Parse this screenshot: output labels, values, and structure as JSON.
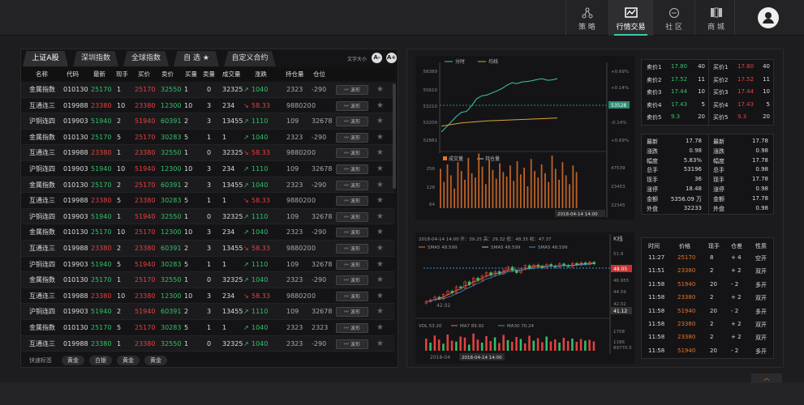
{
  "nav": [
    {
      "label": "策 略",
      "icon": "strategy-icon"
    },
    {
      "label": "行情交易",
      "icon": "market-icon",
      "active": true
    },
    {
      "label": "社 区",
      "icon": "chat-icon"
    },
    {
      "label": "商 城",
      "icon": "mall-icon"
    }
  ],
  "tabs": [
    "上证A股",
    "深圳指数",
    "全球指数",
    "自 选",
    "自定义合约"
  ],
  "font_size_label": "文字大小",
  "font_buttons": [
    "A-",
    "A+"
  ],
  "columns": [
    "名称",
    "代码",
    "最新",
    "现手",
    "买价",
    "卖价",
    "买量",
    "卖量",
    "成交量",
    "涨跌",
    "持仓量",
    "仓位"
  ],
  "wave_label": "波形",
  "rows": [
    [
      "金属指数",
      "010130",
      "25170",
      "1",
      "25170",
      "32550",
      "1",
      "0",
      "32325",
      "1040",
      "2323",
      "-290",
      "up"
    ],
    [
      "互通连三",
      "019988",
      "23380",
      "10",
      "23380",
      "12300",
      "10",
      "3",
      "234",
      "58.33",
      "988020",
      "0",
      "down"
    ],
    [
      "沪铜连四",
      "019903",
      "51940",
      "2",
      "51940",
      "60391",
      "2",
      "3",
      "13455",
      "1110",
      "109",
      "32678",
      "up"
    ],
    [
      "金属指数",
      "010130",
      "25170",
      "5",
      "25170",
      "30283",
      "5",
      "1",
      "1",
      "1040",
      "2323",
      "-290",
      "up"
    ],
    [
      "互通连三",
      "019988",
      "23380",
      "1",
      "23380",
      "32550",
      "1",
      "0",
      "32325",
      "58.33",
      "988020",
      "0",
      "down"
    ],
    [
      "沪铜连四",
      "019903",
      "51940",
      "10",
      "51940",
      "12300",
      "10",
      "3",
      "234",
      "1110",
      "109",
      "32678",
      "up"
    ],
    [
      "金属指数",
      "010130",
      "25170",
      "2",
      "25170",
      "60391",
      "2",
      "3",
      "13455",
      "1040",
      "2323",
      "-290",
      "up"
    ],
    [
      "互通连三",
      "019988",
      "23380",
      "5",
      "23380",
      "30283",
      "5",
      "1",
      "1",
      "58.33",
      "988020",
      "0",
      "down"
    ],
    [
      "沪铜连四",
      "019903",
      "51940",
      "1",
      "51940",
      "32550",
      "1",
      "0",
      "32325",
      "1110",
      "109",
      "32678",
      "up"
    ],
    [
      "金属指数",
      "010130",
      "25170",
      "10",
      "25170",
      "12300",
      "10",
      "3",
      "234",
      "1040",
      "2323",
      "-290",
      "up"
    ],
    [
      "互通连三",
      "019988",
      "23380",
      "2",
      "23380",
      "60391",
      "2",
      "3",
      "13455",
      "58.33",
      "988020",
      "0",
      "down"
    ],
    [
      "沪铜连四",
      "019903",
      "51940",
      "5",
      "51940",
      "30283",
      "5",
      "1",
      "1",
      "1110",
      "109",
      "32678",
      "up"
    ],
    [
      "金属指数",
      "010130",
      "25170",
      "1",
      "25170",
      "32550",
      "1",
      "0",
      "32325",
      "1040",
      "2323",
      "-290",
      "up"
    ],
    [
      "互通连三",
      "019988",
      "23380",
      "10",
      "23380",
      "12300",
      "10",
      "3",
      "234",
      "58.33",
      "988020",
      "0",
      "down"
    ],
    [
      "沪铜连四",
      "019903",
      "51940",
      "2",
      "51940",
      "60391",
      "2",
      "3",
      "13455",
      "1110",
      "109",
      "32678",
      "up"
    ],
    [
      "金属指数",
      "010130",
      "25170",
      "5",
      "25170",
      "30283",
      "5",
      "1",
      "1",
      "1040",
      "2323",
      "2323",
      "up"
    ],
    [
      "互通连三",
      "019988",
      "23380",
      "1",
      "23380",
      "32550",
      "1",
      "0",
      "32325",
      "1040",
      "2323",
      "-290",
      "up"
    ]
  ],
  "quick_label": "快速标签",
  "quick_tags": [
    "黄金",
    "白银",
    "黄金",
    "黄金"
  ],
  "timeshare": {
    "legend": [
      "分时",
      "均线"
    ],
    "left_ticks": [
      "58389",
      "55610",
      "53210",
      "53209",
      "52881"
    ],
    "right_ticks": [
      "+0.69%",
      "+0.14%",
      "-0.05%",
      "-0.14%",
      "+0.69%"
    ],
    "price_tag": "53528",
    "price_series": [
      52700,
      52820,
      52950,
      53080,
      53180,
      53200,
      53340,
      53510,
      53580,
      53600,
      53650,
      53700,
      53760,
      53840,
      53900,
      53880,
      53920,
      53930,
      53950,
      53980,
      54000,
      53960,
      53970,
      54000
    ],
    "avg_series": [
      52840,
      52860,
      52880,
      52900,
      52920,
      52930,
      52940,
      52950,
      52960,
      52970,
      52975,
      52980,
      52985,
      52990,
      52995,
      53000,
      53005,
      53010,
      53015,
      53020,
      53025,
      53030,
      53035,
      53040
    ],
    "vol_legend": [
      "成交量",
      "持仓量"
    ],
    "vol_ticks": [
      "256",
      "128",
      "64"
    ],
    "vol_right_ticks": [
      "47539",
      "23453",
      "22345"
    ],
    "date_tag": "2018-04-14 14:00",
    "volumes": [
      180,
      120,
      200,
      150,
      90,
      210,
      170,
      130,
      230,
      160,
      140,
      250,
      190,
      110,
      220,
      175,
      135,
      205,
      165,
      145,
      195,
      125,
      215,
      155,
      185,
      100,
      225,
      170,
      140,
      200,
      160,
      120,
      240,
      180,
      130,
      210,
      150,
      110,
      195,
      165
    ]
  },
  "kline": {
    "header": "2018-04-14 14:00  开：39.25  高：29.32  低：48.35  收：47.37",
    "title": "K线",
    "sma": [
      "SMA5 48.599",
      "SMA5 48.599",
      "SMA5 48.599"
    ],
    "right_ticks": [
      "51.9",
      "48.05",
      "46.955",
      "44.59",
      "42.02",
      "41.12"
    ],
    "low_label": "42.02",
    "vol_header": [
      "VOL 53.20",
      "MA7 89.92",
      "MA30 70.24"
    ],
    "vol_ticks": [
      "1708",
      "1186",
      "89770.5"
    ],
    "date_left": "2018-04",
    "date_tag": "2018-04-14 14:00",
    "closes": [
      41.5,
      41.8,
      42.3,
      42.0,
      42.8,
      43.4,
      43.1,
      44.2,
      44.0,
      45.1,
      44.6,
      45.8,
      45.4,
      46.2,
      46.8,
      46.3,
      47.0,
      46.6,
      47.3,
      47.8,
      47.2,
      46.8,
      47.5,
      48.1,
      47.6,
      48.2,
      48.0,
      47.7,
      48.3,
      48.0,
      47.8,
      48.4,
      48.1,
      47.9,
      48.5,
      48.2,
      48.6,
      48.3,
      48.7,
      48.4
    ],
    "kvol": [
      60,
      40,
      75,
      55,
      35,
      80,
      50,
      45,
      70,
      65,
      30,
      85,
      55,
      40,
      72,
      48,
      66,
      38,
      78,
      52,
      44,
      68,
      58,
      36,
      74,
      50,
      62,
      42,
      70,
      46,
      56,
      40,
      64,
      48,
      60,
      44,
      58,
      50,
      54,
      46
    ]
  },
  "quotes_sell": [
    [
      "卖价1",
      "17.80",
      "40"
    ],
    [
      "卖价2",
      "17.52",
      "11"
    ],
    [
      "卖价3",
      "17.44",
      "10"
    ],
    [
      "卖价4",
      "17.43",
      "5"
    ],
    [
      "卖价5",
      "9.3",
      "20"
    ]
  ],
  "quotes_buy": [
    [
      "买价1",
      "17.80",
      "40"
    ],
    [
      "买价2",
      "17.52",
      "11"
    ],
    [
      "买价3",
      "17.44",
      "10"
    ],
    [
      "买价4",
      "17.43",
      "5"
    ],
    [
      "买价5",
      "9.3",
      "20"
    ]
  ],
  "stats_left": [
    [
      "最新",
      "17.78"
    ],
    [
      "涨跌",
      "0.98"
    ],
    [
      "幅度",
      "5.83%"
    ],
    [
      "总手",
      "53196"
    ],
    [
      "现手",
      "36"
    ],
    [
      "涨停",
      "18.48"
    ],
    [
      "金额",
      "5356.09 万"
    ],
    [
      "外盘",
      "32233"
    ]
  ],
  "stats_right": [
    [
      "最新",
      "17.78"
    ],
    [
      "涨跌",
      "0.98"
    ],
    [
      "幅度",
      "17.78"
    ],
    [
      "总手",
      "0.98"
    ],
    [
      "现手",
      "17.78"
    ],
    [
      "涨停",
      "0.98"
    ],
    [
      "金额",
      "17.78"
    ],
    [
      "外盘",
      "0.98"
    ]
  ],
  "trades_header": [
    "时间",
    "价格",
    "现手",
    "仓差",
    "性质"
  ],
  "trades": [
    [
      "11:27",
      "25170",
      "8",
      "+ 4",
      "空开"
    ],
    [
      "11:51",
      "23380",
      "2",
      "+ 2",
      "双开"
    ],
    [
      "11:58",
      "51940",
      "20",
      "- 2",
      "多开"
    ],
    [
      "11:58",
      "23380",
      "2",
      "+ 2",
      "双开"
    ],
    [
      "11:58",
      "51940",
      "20",
      "- 2",
      "多开"
    ],
    [
      "11:58",
      "23380",
      "2",
      "+ 2",
      "双开"
    ],
    [
      "11:58",
      "23380",
      "2",
      "+ 2",
      "双开"
    ],
    [
      "11:58",
      "51940",
      "20",
      "- 2",
      "多开"
    ]
  ],
  "colors": {
    "up": "#e84040",
    "down": "#35c06b",
    "accent": "#3ec6a7",
    "orange": "#e8742a"
  }
}
